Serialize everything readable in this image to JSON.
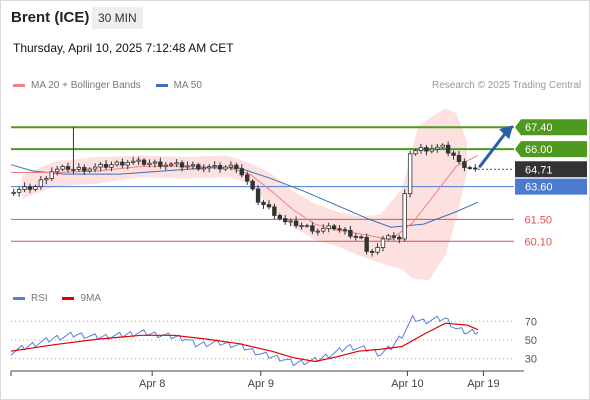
{
  "header": {
    "title": "Brent (ICE)",
    "timeframe": "30 MIN"
  },
  "datetime": "Thursday, April 10, 2025 7:12:48 AM CET",
  "legend": {
    "ma20": "MA 20 + Bollinger Bands",
    "ma50": "MA 50",
    "rsi": "RSI",
    "rsi_ma": "9MA"
  },
  "credit": "Research © 2025 Trading Central",
  "colors": {
    "ma20": "#f08080",
    "ma50": "#3f6eb5",
    "resistance": "#4d9a1e",
    "support": "#e05050",
    "pivot": "#4a7bd0",
    "last": "#333333",
    "bollinger_fill": "#fde1e1",
    "candle": "#333333",
    "rsi": "#5a7fd8",
    "rsi_ma": "#e00000",
    "arrow": "#2a5ea8"
  },
  "chart_data": [
    {
      "type": "candlestick",
      "instrument": "Brent (ICE)",
      "interval": "30 MIN",
      "x_tick_labels": [
        "Apr 8",
        "Apr 9",
        "Apr 10",
        "Apr 19"
      ],
      "ylim": [
        57.3,
        69.4
      ],
      "levels": [
        {
          "value": 67.4,
          "label": "67.40",
          "kind": "resistance"
        },
        {
          "value": 66.0,
          "label": "66.00",
          "kind": "resistance"
        },
        {
          "value": 64.71,
          "label": "64.71",
          "kind": "last"
        },
        {
          "value": 63.6,
          "label": "63.60",
          "kind": "pivot"
        },
        {
          "value": 61.5,
          "label": "61.50",
          "kind": "support"
        },
        {
          "value": 60.1,
          "label": "60.10",
          "kind": "support"
        }
      ],
      "close_path": [
        [
          0,
          63.2
        ],
        [
          5,
          63.6
        ],
        [
          8,
          64.6
        ],
        [
          11,
          64.8
        ],
        [
          12,
          64.7
        ],
        [
          16,
          64.8
        ],
        [
          22,
          65.2
        ],
        [
          26,
          65.1
        ],
        [
          30,
          65.0
        ],
        [
          34,
          64.9
        ],
        [
          38,
          64.8
        ],
        [
          42,
          64.9
        ],
        [
          44,
          63.9
        ],
        [
          46,
          62.7
        ],
        [
          48,
          62.2
        ],
        [
          51,
          61.3
        ],
        [
          53,
          61.2
        ],
        [
          57,
          60.8
        ],
        [
          60,
          61.0
        ],
        [
          62,
          60.7
        ],
        [
          65,
          60.3
        ],
        [
          66,
          59.3
        ],
        [
          68,
          59.7
        ],
        [
          70,
          60.6
        ],
        [
          72,
          60.2
        ],
        [
          73,
          63.0
        ],
        [
          74,
          65.8
        ],
        [
          76,
          66.0
        ],
        [
          80,
          66.1
        ],
        [
          82,
          65.6
        ],
        [
          83,
          65.1
        ],
        [
          86,
          64.71
        ]
      ],
      "ma20_path": [
        [
          0,
          64.5
        ],
        [
          8,
          64.5
        ],
        [
          16,
          64.6
        ],
        [
          24,
          64.9
        ],
        [
          32,
          64.9
        ],
        [
          40,
          64.8
        ],
        [
          44,
          64.4
        ],
        [
          48,
          63.3
        ],
        [
          52,
          62.1
        ],
        [
          56,
          61.2
        ],
        [
          60,
          60.8
        ],
        [
          64,
          60.6
        ],
        [
          70,
          60.2
        ],
        [
          74,
          61.3
        ],
        [
          78,
          63.1
        ],
        [
          82,
          64.9
        ],
        [
          86,
          65.6
        ]
      ],
      "ma50_path": [
        [
          0,
          65.0
        ],
        [
          4,
          64.6
        ],
        [
          10,
          64.4
        ],
        [
          20,
          64.4
        ],
        [
          28,
          64.6
        ],
        [
          36,
          64.8
        ],
        [
          42,
          64.8
        ],
        [
          48,
          64.1
        ],
        [
          54,
          63.3
        ],
        [
          60,
          62.4
        ],
        [
          66,
          61.5
        ],
        [
          70,
          61.0
        ],
        [
          76,
          61.2
        ],
        [
          82,
          62.0
        ],
        [
          86,
          62.6
        ]
      ],
      "bollinger_upper": [
        [
          2,
          64.3
        ],
        [
          8,
          65.2
        ],
        [
          16,
          65.5
        ],
        [
          24,
          65.6
        ],
        [
          32,
          65.5
        ],
        [
          40,
          65.6
        ],
        [
          44,
          65.1
        ],
        [
          48,
          64.4
        ],
        [
          52,
          63.3
        ],
        [
          56,
          62.5
        ],
        [
          60,
          62.0
        ],
        [
          64,
          61.7
        ],
        [
          68,
          61.8
        ],
        [
          72,
          63.5
        ],
        [
          75,
          67.5
        ],
        [
          78,
          68.2
        ],
        [
          80,
          68.6
        ],
        [
          82,
          68.3
        ],
        [
          84,
          66.5
        ]
      ],
      "bollinger_lower": [
        [
          2,
          62.8
        ],
        [
          8,
          63.6
        ],
        [
          16,
          63.8
        ],
        [
          24,
          64.2
        ],
        [
          32,
          64.1
        ],
        [
          40,
          64.2
        ],
        [
          44,
          63.8
        ],
        [
          48,
          62.2
        ],
        [
          52,
          61.0
        ],
        [
          56,
          60.2
        ],
        [
          60,
          59.8
        ],
        [
          64,
          59.2
        ],
        [
          68,
          58.7
        ],
        [
          72,
          58.3
        ],
        [
          74,
          57.7
        ],
        [
          77,
          57.6
        ],
        [
          80,
          59.2
        ],
        [
          82,
          61.5
        ],
        [
          84,
          64.5
        ]
      ],
      "forecast_arrow": {
        "from": [
          86,
          64.9
        ],
        "to": [
          91,
          67.4
        ]
      }
    },
    {
      "type": "line",
      "name": "RSI",
      "ylim": [
        20,
        80
      ],
      "y_tick_labels": [
        "70",
        "50",
        "30"
      ],
      "y_ticks": [
        70,
        50,
        30
      ],
      "rsi_path": [
        [
          0,
          37
        ],
        [
          4,
          45
        ],
        [
          8,
          52
        ],
        [
          12,
          56
        ],
        [
          16,
          53
        ],
        [
          20,
          55
        ],
        [
          24,
          58
        ],
        [
          28,
          55
        ],
        [
          32,
          52
        ],
        [
          34,
          45
        ],
        [
          38,
          47
        ],
        [
          42,
          44
        ],
        [
          46,
          35
        ],
        [
          50,
          30
        ],
        [
          52,
          25
        ],
        [
          56,
          28
        ],
        [
          60,
          37
        ],
        [
          62,
          43
        ],
        [
          66,
          40
        ],
        [
          68,
          35
        ],
        [
          70,
          42
        ],
        [
          72,
          55
        ],
        [
          74,
          73
        ],
        [
          76,
          70
        ],
        [
          78,
          72
        ],
        [
          80,
          73
        ],
        [
          82,
          62
        ],
        [
          84,
          58
        ],
        [
          86,
          60
        ]
      ],
      "ma_path": [
        [
          0,
          38
        ],
        [
          8,
          45
        ],
        [
          16,
          51
        ],
        [
          24,
          55
        ],
        [
          30,
          55
        ],
        [
          36,
          51
        ],
        [
          42,
          46
        ],
        [
          48,
          38
        ],
        [
          52,
          31
        ],
        [
          56,
          27
        ],
        [
          60,
          32
        ],
        [
          64,
          38
        ],
        [
          68,
          40
        ],
        [
          72,
          43
        ],
        [
          76,
          56
        ],
        [
          80,
          68
        ],
        [
          84,
          66
        ],
        [
          86,
          61
        ]
      ]
    }
  ]
}
